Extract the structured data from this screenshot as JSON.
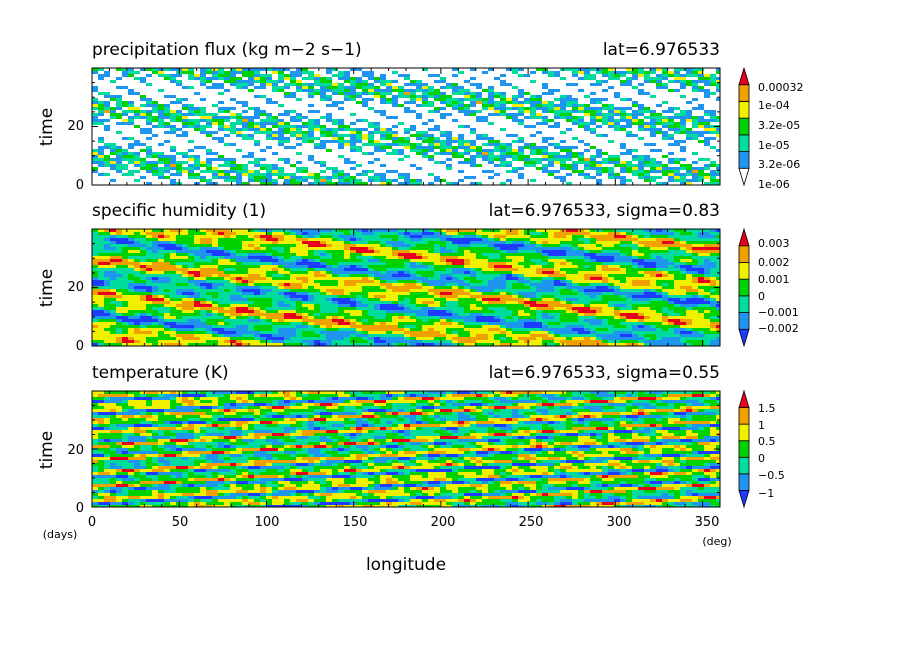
{
  "chart_data": [
    {
      "type": "heatmap",
      "title": "precipitation flux (kg m−2 s−1)",
      "subtitle": "lat=6.976533",
      "ylabel": "time",
      "y_ticks": [
        "0",
        "20"
      ],
      "ylim": [
        0,
        40
      ],
      "xlim": [
        0,
        360
      ],
      "colorbar_labels": [
        "0.00032",
        "1e-04",
        "3.2e-05",
        "1e-05",
        "3.2e-06",
        "1e-06"
      ],
      "levels": [
        1e-06,
        3.2e-06,
        1e-05,
        3.2e-05,
        0.0001,
        0.00032
      ],
      "colors": [
        "#ffffff",
        "#1e96f0",
        "#00dc9e",
        "#00d200",
        "#f0f000",
        "#f0a000",
        "#e6001e"
      ],
      "log_scale": true,
      "pattern": "sparse"
    },
    {
      "type": "heatmap",
      "title": "specific humidity (1)",
      "subtitle": "lat=6.976533, sigma=0.83",
      "ylabel": "time",
      "y_ticks": [
        "0",
        "20"
      ],
      "ylim": [
        0,
        40
      ],
      "xlim": [
        0,
        360
      ],
      "colorbar_labels": [
        "0.003",
        "0.002",
        "0.001",
        "0",
        "−0.001",
        "−0.002"
      ],
      "levels": [
        -0.002,
        -0.001,
        0,
        0.001,
        0.002,
        0.003
      ],
      "colors": [
        "#1e3cff",
        "#1e96f0",
        "#00dc9e",
        "#00d200",
        "#f0f000",
        "#f0a000",
        "#e6001e"
      ],
      "log_scale": false,
      "pattern": "bands-down"
    },
    {
      "type": "heatmap",
      "title": "temperature (K)",
      "subtitle": "lat=6.976533, sigma=0.55",
      "ylabel": "time",
      "y_ticks": [
        "0",
        "20"
      ],
      "ylim": [
        0,
        40
      ],
      "xlim": [
        0,
        360
      ],
      "colorbar_labels": [
        "1.5",
        "1",
        "0.5",
        "0",
        "−0.5",
        "−1"
      ],
      "levels": [
        -1,
        -0.5,
        0,
        0.5,
        1,
        1.5
      ],
      "colors": [
        "#1e3cff",
        "#1e96f0",
        "#00dc9e",
        "#00d200",
        "#f0f000",
        "#f0a000",
        "#e6001e"
      ],
      "log_scale": false,
      "pattern": "bands-up"
    }
  ],
  "x_axis": {
    "label": "longitude",
    "ticks": [
      "0",
      "50",
      "100",
      "150",
      "200",
      "250",
      "300",
      "350"
    ],
    "tick_values": [
      0,
      50,
      100,
      150,
      200,
      250,
      300,
      350
    ],
    "unit": "(deg)"
  },
  "y_unit": "(days)"
}
